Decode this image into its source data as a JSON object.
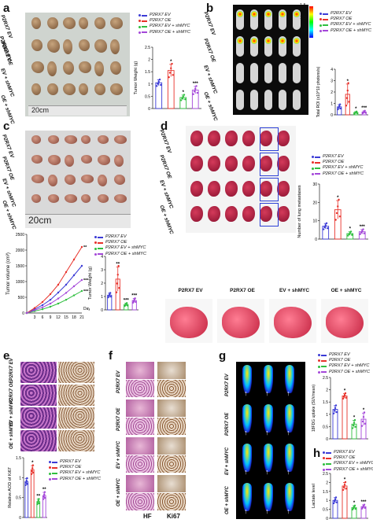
{
  "panels": {
    "a": {
      "label": "a",
      "rows": [
        "P2RX7 EV",
        "P2RX7 OE",
        "EV + shMYC",
        "OE + shMYC"
      ],
      "ruler": "20cm",
      "legend": [
        "P2RX7 EV",
        "P2RX7 OE",
        "P2RX7 EV + shMYC",
        "P2RX7 OE + shMYC"
      ],
      "marks": [
        "*",
        "*",
        "***"
      ]
    },
    "b": {
      "label": "b",
      "rows": [
        "P2RX7 EV",
        "P2RX7 OE",
        "EV + shMYC",
        "OE + shMYC"
      ],
      "legend": [
        "P2RX7 EV",
        "P2RX7 OE",
        "P2RX7 EV + shMYC",
        "P2RX7 OE + shMYC"
      ],
      "colorbar": [
        "1.5",
        "1.0",
        "0.5"
      ],
      "marks": [
        "*",
        "*",
        "***"
      ]
    },
    "c": {
      "label": "c",
      "rows": [
        "P2RX7 EV",
        "P2RX7 OE",
        "EV + shMYC",
        "OE + shMYC"
      ],
      "ruler": "20cm",
      "legend": [
        "P2RX7 EV",
        "P2RX7 OE",
        "P2RX7 EV + shMYC",
        "P2RX7 OE + shMYC"
      ],
      "days_label": "Days",
      "marks": [
        "**",
        "***",
        "***"
      ]
    },
    "d": {
      "label": "d",
      "rows": [
        "P2RX7 EV",
        "P2RX7 OE",
        "EV + shMYC",
        "OE + shMYC"
      ],
      "legend": [
        "P2RX7 EV",
        "P2RX7 OE",
        "P2RX7 EV + shMYC",
        "P2RX7 OE + shMYC"
      ],
      "lung_captions": [
        "P2RX7 EV",
        "P2RX7 OE",
        "EV + shMYC",
        "OE + shMYC"
      ],
      "marks": [
        "*",
        "*",
        "***"
      ]
    },
    "e": {
      "label": "e",
      "rows": [
        "P2RX7 EV",
        "P2RX7 OE",
        "EV + shMYC",
        "OE + shMYC"
      ],
      "legend": [
        "P2RX7 EV",
        "P2RX7 OE",
        "P2RX7 EV + shMYC",
        "P2RX7 OE + shMYC"
      ],
      "marks": [
        "*",
        "**",
        "**"
      ]
    },
    "f": {
      "label": "f",
      "rows": [
        "P2RX7 EV",
        "P2RX7 OE",
        "EV + shMYC",
        "OE + shMYC"
      ],
      "columns": [
        "HF",
        "Ki67"
      ]
    },
    "g": {
      "label": "g",
      "rows": [
        "P2RX7 EV",
        "P2RX7 OE",
        "EV + shMYC",
        "OE + shMYC"
      ],
      "legend": [
        "P2RX7 EV",
        "P2RX7 OE",
        "P2RX7 EV + shMYC",
        "P2RX7 OE + shMYC"
      ],
      "marks": [
        "*",
        "*",
        "*"
      ]
    },
    "h": {
      "label": "h",
      "legend": [
        "P2RX7 EV",
        "P2RX7 OE",
        "P2RX7 EV + shMYC",
        "P2RX7 OE + shMYC"
      ],
      "marks": [
        "*",
        "*",
        "***"
      ]
    }
  },
  "colors": {
    "ev": "#3b3bd6",
    "oe": "#e8312a",
    "ev_shmyc": "#2fbf3f",
    "oe_shmyc": "#a447d9"
  },
  "chart_data": [
    {
      "id": "a-tumor-weight",
      "type": "bar",
      "categories": [
        "P2RX7 EV",
        "P2RX7 OE",
        "P2RX7 EV + shMYC",
        "P2RX7 OE + shMYC"
      ],
      "values": [
        1.05,
        1.55,
        0.45,
        0.75
      ],
      "errors": [
        0.12,
        0.25,
        0.1,
        0.15
      ],
      "ylabel": "Tumor Weight (g)",
      "ylim": [
        0,
        2.5
      ],
      "yticks": [
        0,
        0.5,
        1.0,
        1.5,
        2.0,
        2.5
      ]
    },
    {
      "id": "b-total-roi",
      "type": "bar",
      "categories": [
        "P2RX7 EV",
        "P2RX7 OE",
        "P2RX7 EV + shMYC",
        "P2RX7 OE + shMYC"
      ],
      "values": [
        0.7,
        1.8,
        0.2,
        0.25
      ],
      "errors": [
        0.2,
        0.9,
        0.08,
        0.1
      ],
      "ylabel": "Total ROI (x10^10 photons/s)",
      "ylim": [
        0,
        4
      ],
      "yticks": [
        0,
        1,
        2,
        3,
        4
      ]
    },
    {
      "id": "c-tumor-volume",
      "type": "line",
      "x": [
        0,
        3,
        6,
        9,
        12,
        15,
        18,
        21
      ],
      "series": [
        {
          "name": "P2RX7 EV",
          "values": [
            0,
            120,
            250,
            420,
            650,
            900,
            1200,
            1500
          ]
        },
        {
          "name": "P2RX7 OE",
          "values": [
            0,
            160,
            350,
            600,
            900,
            1300,
            1700,
            2100
          ]
        },
        {
          "name": "P2RX7 EV + shMYC",
          "values": [
            0,
            60,
            120,
            200,
            300,
            420,
            560,
            700
          ]
        },
        {
          "name": "P2RX7 OE + shMYC",
          "values": [
            0,
            90,
            180,
            300,
            460,
            640,
            850,
            1050
          ]
        }
      ],
      "xlabel": "Days",
      "ylabel": "Tumor volume (cm³)",
      "ylim": [
        0,
        2500
      ],
      "xticks": [
        3,
        6,
        9,
        12,
        15,
        18,
        21
      ],
      "yticks": [
        0,
        500,
        1000,
        1500,
        2000,
        2500
      ]
    },
    {
      "id": "c-tumor-weight",
      "type": "bar",
      "categories": [
        "P2RX7 EV",
        "P2RX7 OE",
        "P2RX7 EV + shMYC",
        "P2RX7 OE + shMYC"
      ],
      "values": [
        1.1,
        2.3,
        0.4,
        0.7
      ],
      "errors": [
        0.15,
        0.9,
        0.1,
        0.15
      ],
      "ylabel": "Tumor Weight (g)",
      "ylim": [
        0,
        4
      ],
      "yticks": [
        0,
        1,
        2,
        3,
        4
      ]
    },
    {
      "id": "d-lung-metastases",
      "type": "bar",
      "categories": [
        "P2RX7 EV",
        "P2RX7 OE",
        "P2RX7 EV + shMYC",
        "P2RX7 OE + shMYC"
      ],
      "values": [
        7,
        16,
        3,
        4
      ],
      "errors": [
        1.5,
        5,
        1,
        1.2
      ],
      "ylabel": "Number of lung metastases",
      "ylim": [
        0,
        30
      ],
      "yticks": [
        0,
        10,
        20,
        30
      ]
    },
    {
      "id": "e-aod-ki67",
      "type": "bar",
      "categories": [
        "P2RX7 EV",
        "P2RX7 OE",
        "P2RX7 EV + shMYC",
        "P2RX7 OE + shMYC"
      ],
      "values": [
        0.9,
        1.2,
        0.4,
        0.55
      ],
      "errors": [
        0.08,
        0.1,
        0.06,
        0.08
      ],
      "ylabel": "Relative AOD of Ki67",
      "ylim": [
        0,
        1.5
      ],
      "yticks": [
        0,
        0.5,
        1.0,
        1.5
      ]
    },
    {
      "id": "g-fdg-uptake",
      "type": "bar",
      "categories": [
        "P2RX7 EV",
        "P2RX7 OE",
        "P2RX7 EV + shMYC",
        "P2RX7 OE + shMYC"
      ],
      "values": [
        1.2,
        1.75,
        0.6,
        0.8
      ],
      "errors": [
        0.15,
        0.1,
        0.15,
        0.25
      ],
      "ylabel": "18FDG uptake (SUVmean)",
      "ylim": [
        0,
        2.5
      ],
      "yticks": [
        0,
        0.5,
        1.0,
        1.5,
        2.0,
        2.5
      ]
    },
    {
      "id": "h-lactate",
      "type": "bar",
      "categories": [
        "P2RX7 EV",
        "P2RX7 OE",
        "P2RX7 EV + shMYC",
        "P2RX7 OE + shMYC"
      ],
      "values": [
        1.0,
        1.8,
        0.6,
        0.65
      ],
      "errors": [
        0.15,
        0.2,
        0.1,
        0.1
      ],
      "ylabel": "Lactate level",
      "ylim": [
        0,
        2.5
      ],
      "yticks": [
        0,
        0.5,
        1.0,
        1.5,
        2.0,
        2.5
      ]
    }
  ]
}
